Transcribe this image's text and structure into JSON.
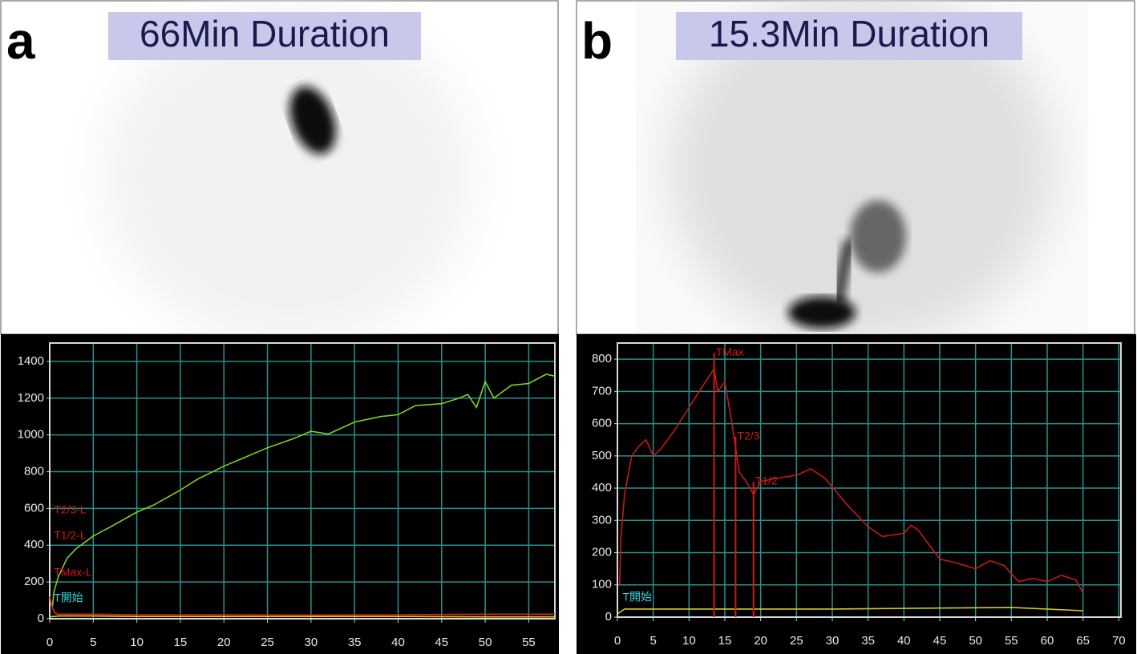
{
  "chart_data": [
    {
      "type": "line",
      "panel": "a",
      "image_label": "66Min Duration",
      "xlim": [
        0,
        58
      ],
      "xticks": [
        0,
        5,
        10,
        15,
        20,
        25,
        30,
        35,
        40,
        45,
        50,
        55
      ],
      "ylim": [
        0,
        1500
      ],
      "yticks": [
        0,
        200,
        400,
        600,
        800,
        1000,
        1200,
        1400
      ],
      "grid": true,
      "series": [
        {
          "color": "#7ed321",
          "x": [
            0.3,
            0.5,
            1,
            2,
            3,
            5,
            7,
            10,
            12,
            15,
            17,
            20,
            22,
            25,
            28,
            30,
            32,
            35,
            38,
            40,
            42,
            45,
            47,
            48,
            49,
            50,
            51,
            53,
            55,
            57,
            58
          ],
          "values": [
            60,
            150,
            230,
            330,
            380,
            450,
            500,
            580,
            620,
            700,
            760,
            830,
            870,
            930,
            980,
            1020,
            1005,
            1070,
            1100,
            1110,
            1160,
            1170,
            1200,
            1220,
            1150,
            1290,
            1200,
            1270,
            1280,
            1330,
            1320
          ]
        },
        {
          "color": "#e02020",
          "x": [
            0,
            0.3,
            0.6,
            1,
            5,
            10,
            20,
            30,
            40,
            50,
            58
          ],
          "values": [
            120,
            60,
            30,
            25,
            25,
            22,
            22,
            20,
            22,
            25,
            25
          ]
        },
        {
          "color": "#e0d020",
          "x": [
            0,
            1,
            5,
            10,
            20,
            30,
            40,
            50,
            58
          ],
          "values": [
            10,
            15,
            15,
            12,
            12,
            12,
            12,
            10,
            10
          ]
        }
      ],
      "annotations": [
        {
          "text": "T2/3-L",
          "x": 0.3,
          "y": 590,
          "color": "#d01818"
        },
        {
          "text": "T1/2-L",
          "x": 0.3,
          "y": 450,
          "color": "#d01818"
        },
        {
          "text": "TMax-L",
          "x": 0.3,
          "y": 250,
          "color": "#d01818"
        },
        {
          "text": "T開始",
          "x": 0.3,
          "y": 110,
          "color": "#30d8e0"
        }
      ]
    },
    {
      "type": "line",
      "panel": "b",
      "image_label": "15.3Min Duration",
      "xlim": [
        0,
        70.3
      ],
      "xticks": [
        0,
        5,
        10,
        15,
        20,
        25,
        30,
        35,
        40,
        45,
        50,
        55,
        60,
        65,
        70
      ],
      "ylim": [
        0,
        850
      ],
      "yticks": [
        0,
        100,
        200,
        300,
        400,
        500,
        600,
        700,
        800
      ],
      "grid": true,
      "marker_lines": true,
      "series": [
        {
          "color": "#c81818",
          "x": [
            0.3,
            0.5,
            1,
            2,
            3,
            4,
            5,
            6,
            8,
            10,
            12,
            13.5,
            14,
            15,
            16,
            17,
            18,
            19,
            20,
            22,
            25,
            27,
            29,
            32,
            35,
            37,
            40,
            41,
            42,
            45,
            47,
            50,
            52,
            54,
            56,
            58,
            60,
            62,
            64,
            65
          ],
          "values": [
            100,
            250,
            380,
            500,
            530,
            550,
            500,
            520,
            580,
            650,
            720,
            770,
            700,
            730,
            600,
            450,
            420,
            380,
            420,
            430,
            440,
            460,
            430,
            350,
            280,
            250,
            260,
            285,
            270,
            180,
            170,
            150,
            175,
            160,
            110,
            120,
            110,
            130,
            115,
            75
          ]
        },
        {
          "color": "#d8c820",
          "x": [
            0,
            1,
            10,
            30,
            55,
            65
          ],
          "values": [
            10,
            25,
            25,
            25,
            30,
            20
          ]
        }
      ],
      "annotations": [
        {
          "text": "TMax",
          "x": 13.5,
          "y": 820,
          "color": "#d01818"
        },
        {
          "text": "T2/3",
          "x": 16.5,
          "y": 560,
          "color": "#d01818"
        },
        {
          "text": "T1/2",
          "x": 19,
          "y": 420,
          "color": "#d01818"
        },
        {
          "text": "T開始",
          "x": 0.5,
          "y": 60,
          "color": "#30d8e0"
        }
      ]
    }
  ]
}
